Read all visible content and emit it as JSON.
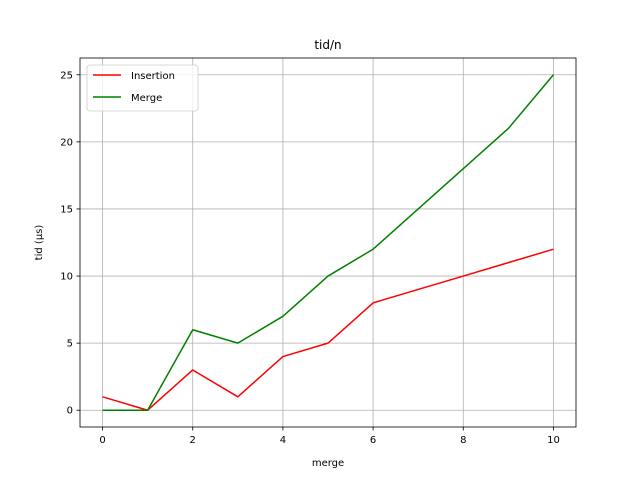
{
  "chart_data": {
    "type": "line",
    "title": "tid/n",
    "xlabel": "merge",
    "ylabel": "tid (µs)",
    "xlim": [
      -0.5,
      10.5
    ],
    "ylim": [
      -1.25,
      26.25
    ],
    "xticks": [
      0,
      2,
      4,
      6,
      8,
      10
    ],
    "yticks": [
      0,
      5,
      10,
      15,
      20,
      25
    ],
    "grid": true,
    "legend_position": "top-left",
    "series": [
      {
        "name": "Insertion",
        "color": "#ff0000",
        "x": [
          0,
          1,
          2,
          3,
          4,
          5,
          6,
          7,
          8,
          9,
          10
        ],
        "values": [
          1,
          0,
          3,
          1,
          4,
          5,
          8,
          9,
          10,
          11,
          12
        ]
      },
      {
        "name": "Merge",
        "color": "#008000",
        "x": [
          0,
          1,
          2,
          3,
          4,
          5,
          6,
          7,
          8,
          9,
          10
        ],
        "values": [
          0,
          0,
          6,
          5,
          7,
          10,
          12,
          15,
          18,
          21,
          25
        ]
      }
    ]
  }
}
